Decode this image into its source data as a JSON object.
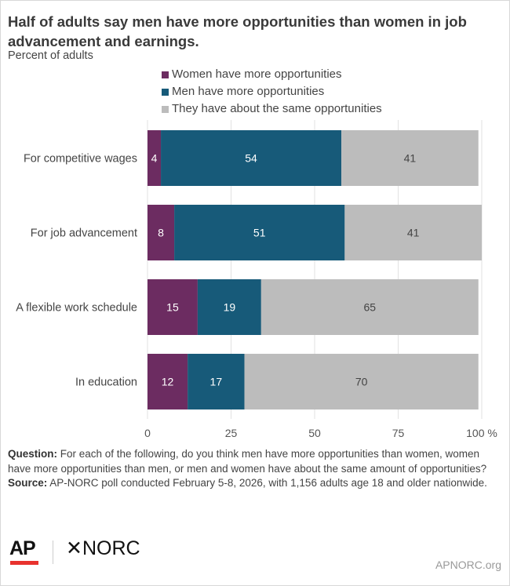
{
  "title": "Half of adults say men have more opportunities than women in job advancement and earnings.",
  "subtitle": "Percent of adults",
  "chart_data": {
    "type": "bar",
    "orientation": "horizontal",
    "stacked": true,
    "categories": [
      "For competitive wages",
      "For job advancement",
      "A flexible work schedule",
      "In education"
    ],
    "series": [
      {
        "name": "Women have more opportunities",
        "color": "#6c2c61",
        "values": [
          4,
          8,
          15,
          12
        ]
      },
      {
        "name": "Men have more opportunities",
        "color": "#175a79",
        "values": [
          54,
          51,
          19,
          17
        ]
      },
      {
        "name": "They have about the same opportunities",
        "color": "#bcbcbc",
        "values": [
          41,
          41,
          65,
          70
        ]
      }
    ],
    "xlim": [
      0,
      100
    ],
    "x_ticks": [
      "0",
      "25",
      "50",
      "75",
      "100"
    ],
    "x_unit": "%",
    "grid": true,
    "legend_position": "top"
  },
  "notes": {
    "question_label": "Question:",
    "question": " For each of the following, do you think men have more opportunities than women, women have more opportunities than men, or men and women have about the same amount of opportunities?",
    "source_label": "Source:",
    "source": " AP-NORC poll conducted February 5-8, 2026, with 1,156 adults age 18 and older nationwide."
  },
  "footer": {
    "ap_logo": "AP",
    "norc_logo": "NORC",
    "site": "APNORC.org"
  }
}
